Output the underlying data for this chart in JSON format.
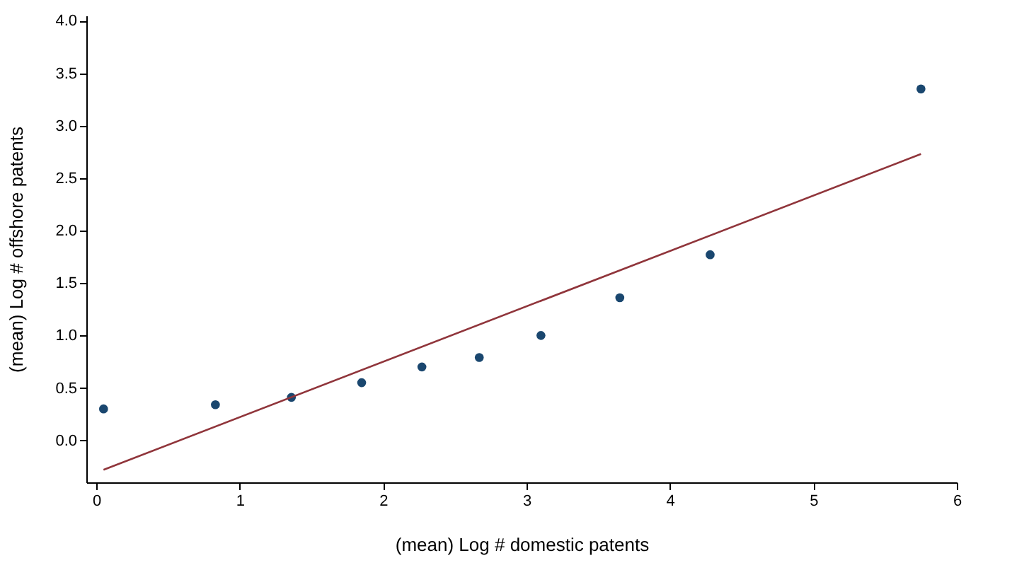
{
  "chart_data": {
    "type": "scatter",
    "xlabel": "(mean) Log # domestic patents",
    "ylabel": "(mean) Log # offshore patents",
    "x": [
      0.05,
      0.83,
      1.36,
      1.85,
      2.27,
      2.67,
      3.1,
      3.65,
      4.28,
      5.75
    ],
    "series": [
      {
        "color": "#1a476f",
        "marker": "circle",
        "values": [
          0.3,
          0.34,
          0.41,
          0.55,
          0.7,
          0.79,
          1.0,
          1.36,
          1.77,
          3.35
        ]
      },
      {
        "type": "line",
        "color": "#90353b",
        "x": [
          0.05,
          5.75
        ],
        "values": [
          -0.28,
          2.73
        ]
      }
    ],
    "xlim": [
      -0.07,
      6
    ],
    "ylim": [
      -0.4,
      4.05
    ],
    "xticks": [
      0,
      1,
      2,
      3,
      4,
      5,
      6
    ],
    "yticks": [
      {
        "value": 0,
        "label": "0.0"
      },
      0.5,
      {
        "value": 1,
        "label": "1.0"
      },
      1.5,
      {
        "value": 2,
        "label": "2.0"
      },
      2.5,
      {
        "value": 3,
        "label": "3.0"
      },
      3.5,
      {
        "value": 4,
        "label": "4.0"
      }
    ],
    "grid": false
  }
}
